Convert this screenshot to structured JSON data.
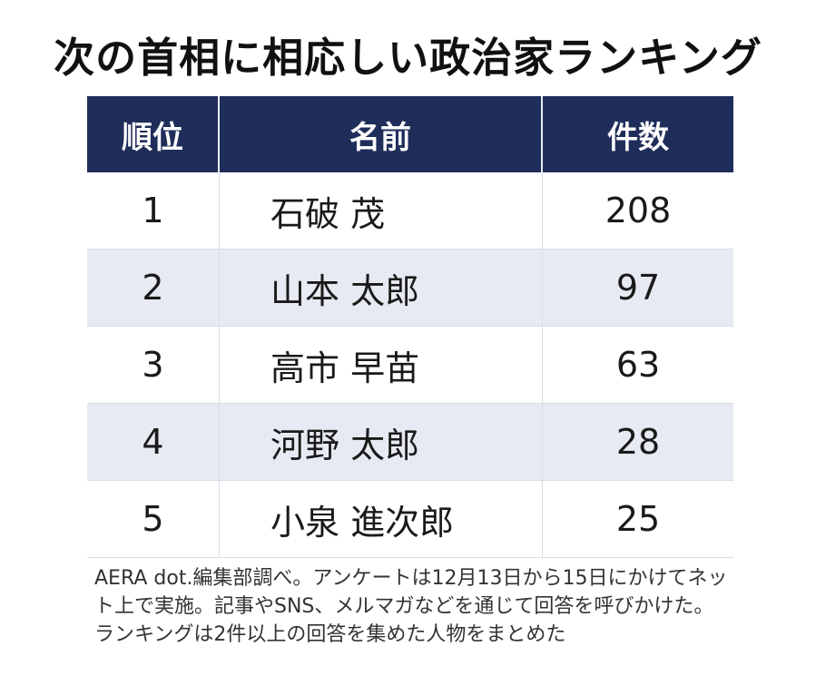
{
  "title": "次の首相に相応しい政治家ランキング",
  "colors": {
    "header_bg": "#1f2d5a",
    "header_text": "#ffffff",
    "alt_row_bg": "#e7eaf3"
  },
  "chart_data": {
    "type": "table",
    "title": "次の首相に相応しい政治家ランキング",
    "columns": [
      "順位",
      "名前",
      "件数"
    ],
    "rows": [
      {
        "rank": "1",
        "name": "石破 茂",
        "count": "208"
      },
      {
        "rank": "2",
        "name": "山本 太郎",
        "count": "97"
      },
      {
        "rank": "3",
        "name": "高市 早苗",
        "count": "63"
      },
      {
        "rank": "4",
        "name": "河野 太郎",
        "count": "28"
      },
      {
        "rank": "5",
        "name": "小泉 進次郎",
        "count": "25"
      }
    ]
  },
  "note": "AERA dot.編集部調べ。アンケートは12月13日から15日にかけてネット上で実施。記事やSNS、メルマガなどを通じて回答を呼びかけた。ランキングは2件以上の回答を集めた人物をまとめた"
}
